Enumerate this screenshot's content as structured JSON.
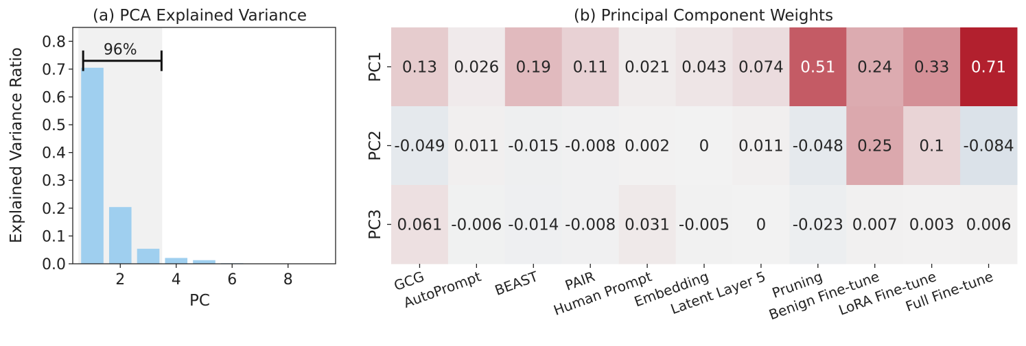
{
  "chart_data": [
    {
      "type": "bar",
      "title": "(a) PCA Explained Variance",
      "xlabel": "PC",
      "ylabel": "Explained Variance Ratio",
      "x": [
        1,
        2,
        3,
        4,
        5,
        6,
        7,
        8,
        9
      ],
      "values": [
        0.705,
        0.204,
        0.054,
        0.021,
        0.013,
        0.002,
        0.001,
        0.0,
        0.0
      ],
      "xticks": [
        2,
        4,
        6,
        8
      ],
      "yticks": [
        0.0,
        0.1,
        0.2,
        0.3,
        0.4,
        0.5,
        0.6,
        0.7,
        0.8
      ],
      "xlim": [
        0.3,
        9.7
      ],
      "ylim": [
        0,
        0.85
      ],
      "bar_color": "#9fcfef",
      "highlight": {
        "from_pc": 1,
        "to_pc": 3,
        "label": "96%",
        "shade_color": "#f1f1f1"
      },
      "grid": false
    },
    {
      "type": "heatmap",
      "title": "(b) Principal Component Weights",
      "rows": [
        "PC1",
        "PC2",
        "PC3"
      ],
      "columns": [
        "GCG",
        "AutoPrompt",
        "BEAST",
        "PAIR",
        "Human Prompt",
        "Embedding",
        "Latent Layer 5",
        "Pruning",
        "Benign Fine-tune",
        "LoRA Fine-tune",
        "Full Fine-tune"
      ],
      "values": [
        [
          0.13,
          0.026,
          0.19,
          0.11,
          0.021,
          0.043,
          0.074,
          0.51,
          0.24,
          0.33,
          0.71
        ],
        [
          -0.049,
          0.011,
          -0.015,
          -0.008,
          0.002,
          0,
          0.011,
          -0.048,
          0.25,
          0.1,
          -0.084
        ],
        [
          0.061,
          -0.006,
          -0.014,
          -0.008,
          0.031,
          -0.005,
          0,
          -0.023,
          0.007,
          0.003,
          0.006
        ]
      ],
      "labels": [
        [
          "0.13",
          "0.026",
          "0.19",
          "0.11",
          "0.021",
          "0.043",
          "0.074",
          "0.51",
          "0.24",
          "0.33",
          "0.71"
        ],
        [
          "-0.049",
          "0.011",
          "-0.015",
          "-0.008",
          "0.002",
          "0",
          "0.011",
          "-0.048",
          "0.25",
          "0.1",
          "-0.084"
        ],
        [
          "0.061",
          "-0.006",
          "-0.014",
          "-0.008",
          "0.031",
          "-0.005",
          "0",
          "-0.023",
          "0.007",
          "0.003",
          "0.006"
        ]
      ],
      "colormap": {
        "negative": "#2f6ba8",
        "neutral": "#f2f2f2",
        "positive": "#b2202e",
        "vmin": -0.71,
        "vmax": 0.71
      },
      "grid": false
    }
  ]
}
